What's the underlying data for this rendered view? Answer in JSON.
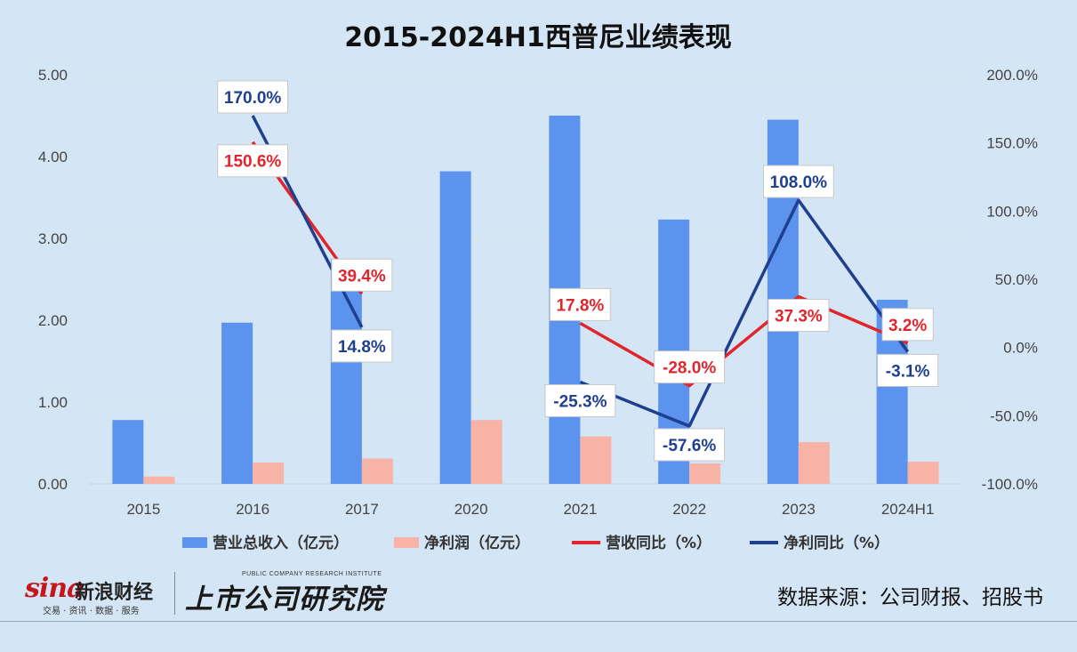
{
  "chart_data": {
    "type": "bar",
    "title": "2015-2024H1西普尼业绩表现",
    "categories": [
      "2015",
      "2016",
      "2017",
      "2020",
      "2021",
      "2022",
      "2023",
      "2024H1"
    ],
    "series": [
      {
        "name": "营业总收入（亿元）",
        "type": "bar",
        "axis": "left",
        "color": "#5b93ef",
        "values": [
          0.78,
          1.97,
          2.75,
          3.82,
          4.5,
          3.23,
          4.45,
          2.25
        ]
      },
      {
        "name": "净利润（亿元）",
        "type": "bar",
        "axis": "left",
        "color": "#f7b3a6",
        "values": [
          0.09,
          0.26,
          0.31,
          0.78,
          0.58,
          0.25,
          0.51,
          0.27
        ]
      },
      {
        "name": "营收同比（%）",
        "type": "line",
        "axis": "right",
        "color": "#e0262c",
        "values": [
          null,
          150.6,
          39.4,
          null,
          17.8,
          -28.0,
          37.3,
          3.2
        ],
        "labels": [
          "",
          "150.6%",
          "39.4%",
          "",
          "17.8%",
          "-28.0%",
          "37.3%",
          "3.2%"
        ]
      },
      {
        "name": "净利同比（%）",
        "type": "line",
        "axis": "right",
        "color": "#1f3f8f",
        "values": [
          null,
          170.0,
          14.8,
          null,
          -25.3,
          -57.6,
          108.0,
          -3.1
        ],
        "labels": [
          "",
          "170.0%",
          "14.8%",
          "",
          "-25.3%",
          "-57.6%",
          "108.0%",
          "-3.1%"
        ]
      }
    ],
    "y_left": {
      "range": [
        0,
        5
      ],
      "ticks": [
        "0.00",
        "1.00",
        "2.00",
        "3.00",
        "4.00",
        "5.00"
      ]
    },
    "y_right": {
      "range": [
        -100,
        200
      ],
      "ticks": [
        "-100.0%",
        "-50.0%",
        "0.0%",
        "50.0%",
        "100.0%",
        "150.0%",
        "200.0%"
      ]
    },
    "grid": true,
    "legend_position": "bottom"
  },
  "footer": {
    "source": "数据来源：公司财报、招股书",
    "sina_logo_word": "sina",
    "sina_logo_cn": "新浪财经",
    "sina_logo_sub": "交易 · 资讯 · 数据 · 服务",
    "ssgs_logo_en": "PUBLIC COMPANY RESEARCH INSTITUTE",
    "ssgs_logo_cn": "上市公司研究院"
  }
}
